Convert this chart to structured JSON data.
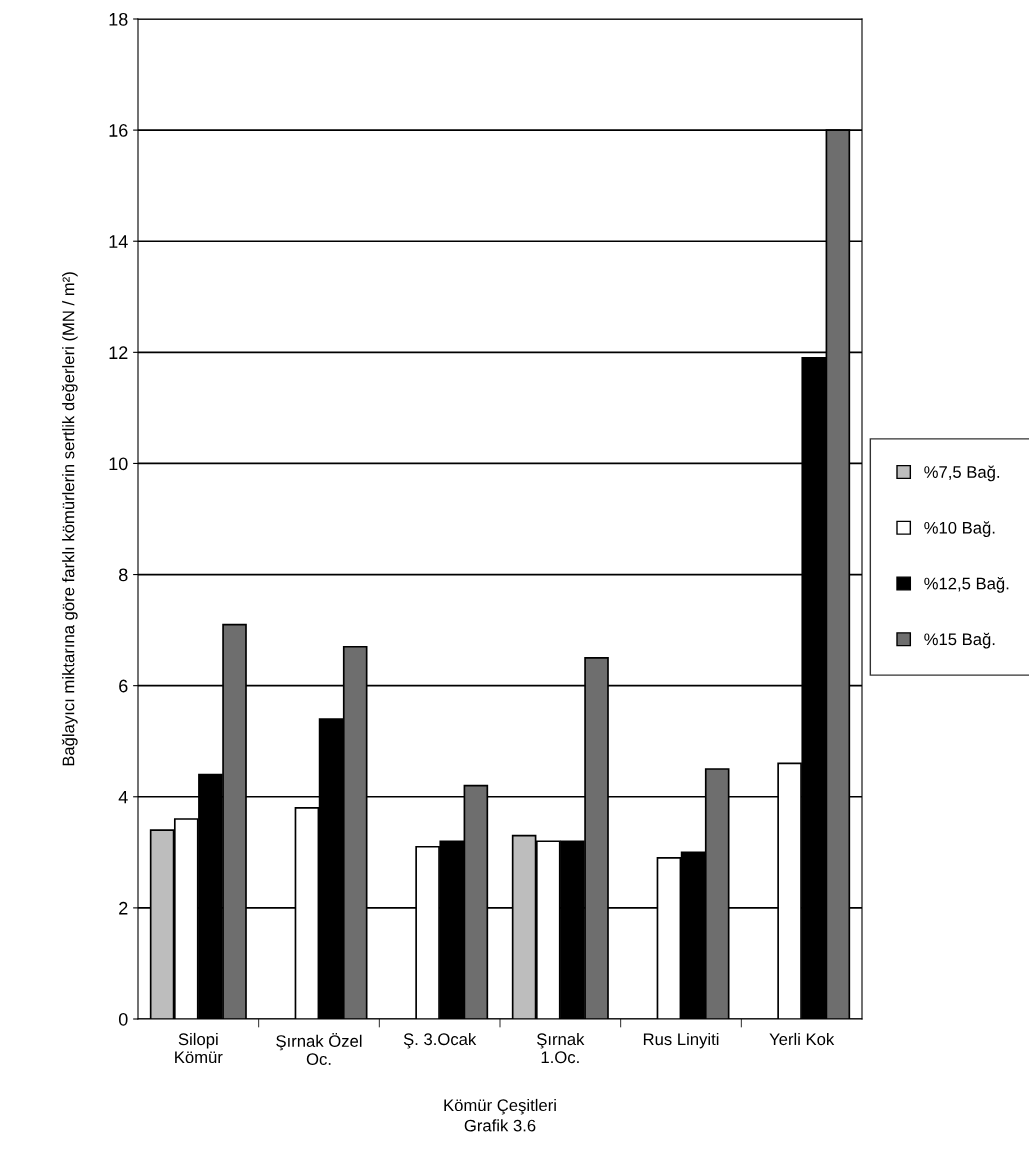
{
  "chart_data": {
    "type": "bar",
    "xlabel": "Kömür Çeşitleri",
    "ylabel": "Bağlayıcı miktarına göre farklı kömürlerin sertlik değerleri (MN / m²)",
    "categories": [
      "Silopi\nKömür",
      "Şırnak Özel\nOc.",
      "Ş. 3.Ocak",
      "Şırnak\n1.Oc.",
      "Rus Linyiti",
      "Yerli Kok"
    ],
    "series": [
      {
        "name": "%7,5 Bağ.",
        "color": "#bdbdbd",
        "values": [
          3.4,
          null,
          null,
          3.3,
          null,
          null
        ]
      },
      {
        "name": "%10 Bağ.",
        "color": "#ffffff",
        "values": [
          3.6,
          3.8,
          3.1,
          3.2,
          2.9,
          4.6
        ]
      },
      {
        "name": "%12,5 Bağ.",
        "color": "#000000",
        "values": [
          4.4,
          5.4,
          3.2,
          3.2,
          3.0,
          11.9
        ]
      },
      {
        "name": "%15 Bağ.",
        "color": "#6e6e6e",
        "values": [
          7.1,
          6.7,
          4.2,
          6.5,
          4.5,
          16.0
        ]
      }
    ],
    "ylim": [
      0,
      18
    ],
    "yticks": [
      0,
      2,
      4,
      6,
      8,
      10,
      12,
      14,
      16,
      18
    ],
    "grid": "y",
    "legend": "right",
    "annotations": [
      "Grafik 3.6"
    ]
  }
}
